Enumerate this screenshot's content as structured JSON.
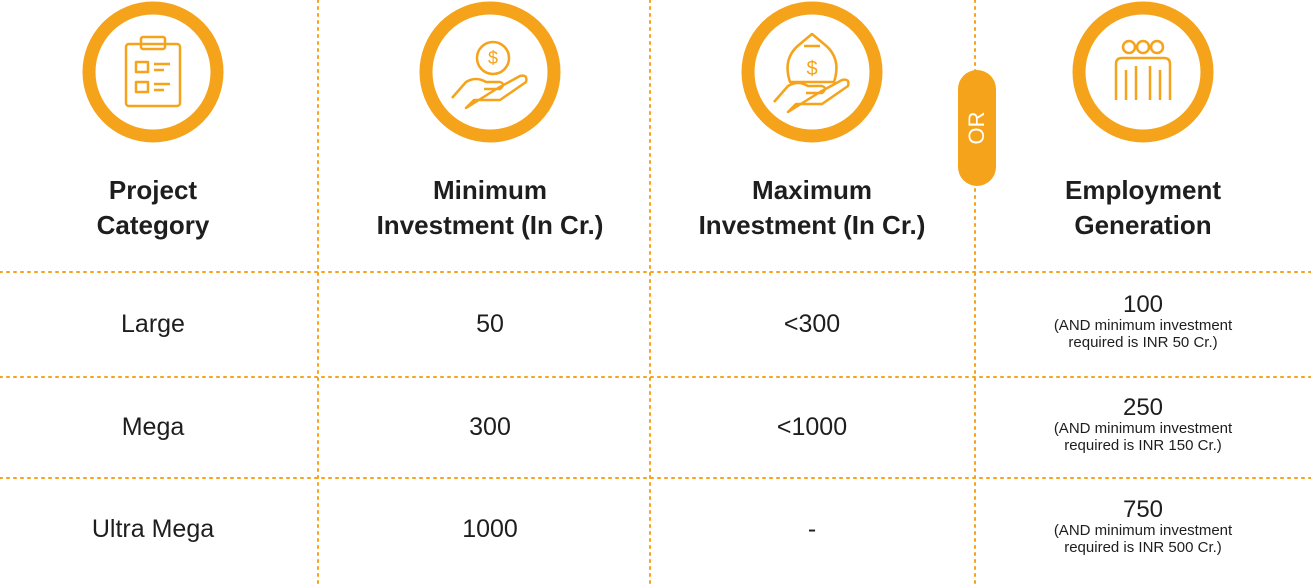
{
  "header": {
    "columns": [
      {
        "title": [
          "Project",
          "Category"
        ]
      },
      {
        "title": [
          "Minimum",
          "Investment (In Cr.)"
        ]
      },
      {
        "title": [
          "Maximum",
          "Investment (In Cr.)"
        ]
      },
      {
        "title": [
          "Employment",
          "Generation"
        ]
      }
    ],
    "separator": "OR"
  },
  "table": {
    "rows": [
      [
        "Large",
        "50",
        "<300",
        {
          "value": "100",
          "note": [
            "(AND minimum investment",
            "required is INR 50 Cr.)"
          ]
        }
      ],
      [
        "Mega",
        "300",
        "<1000",
        {
          "value": "250",
          "note": [
            "(AND minimum investment",
            "required is INR 150 Cr.)"
          ]
        }
      ],
      [
        "Ultra Mega",
        "1000",
        "-",
        {
          "value": "750",
          "note": [
            "(AND minimum investment",
            "required is INR 500 Cr.)"
          ]
        }
      ]
    ]
  }
}
